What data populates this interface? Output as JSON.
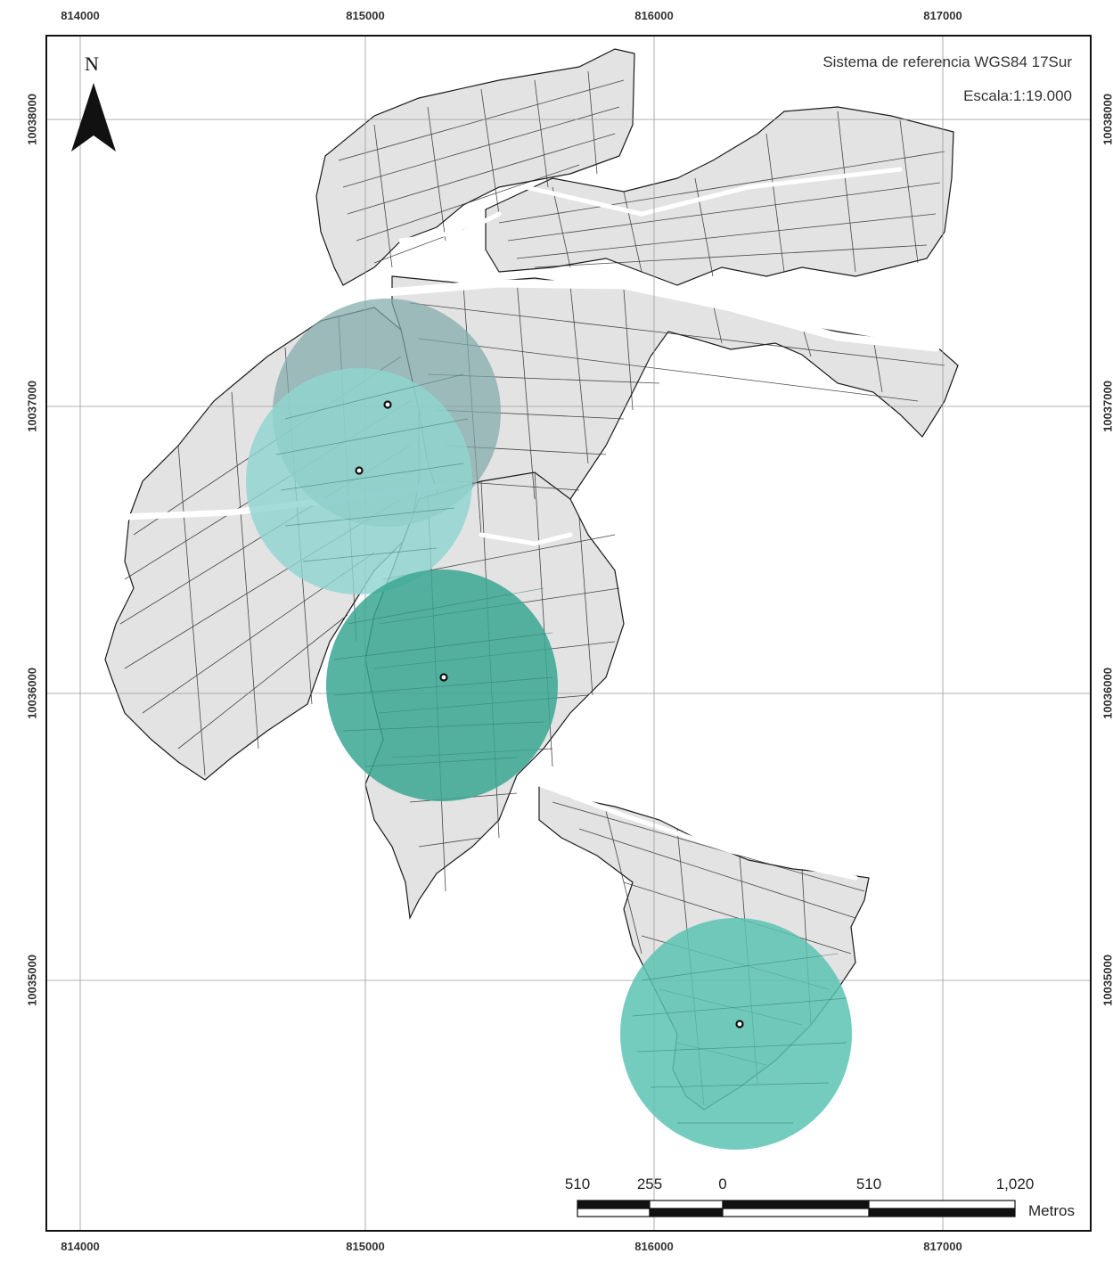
{
  "map": {
    "north_label": "N",
    "reference_system": "Sistema de referencia WGS84 17Sur",
    "scale_text": "Escala:1:19.000",
    "easting_ticks": [
      "814000",
      "815000",
      "816000",
      "817000"
    ],
    "northing_ticks": [
      "10038000",
      "10037000",
      "10036000",
      "10035000"
    ],
    "scale_bar": {
      "labels": [
        "510",
        "255",
        "0",
        "510",
        "1,020"
      ],
      "units": "Metros"
    },
    "buffers": [
      {
        "id": "buffer-1",
        "center_easting": 815080,
        "center_northing": 10037010,
        "color": "#7faaa9"
      },
      {
        "id": "buffer-2",
        "center_easting": 814980,
        "center_northing": 10036770,
        "color": "#8fd4cf"
      },
      {
        "id": "buffer-3",
        "center_easting": 815280,
        "center_northing": 10036060,
        "color": "#3aa792"
      },
      {
        "id": "buffer-4",
        "center_easting": 816300,
        "center_northing": 10034920,
        "color": "#5cc3b3"
      }
    ],
    "colors": {
      "parcel_fill": "#e3e3e3",
      "parcel_stroke": "#1a1a1a",
      "frame": "#111111",
      "grid": "#9a9a9a"
    }
  }
}
